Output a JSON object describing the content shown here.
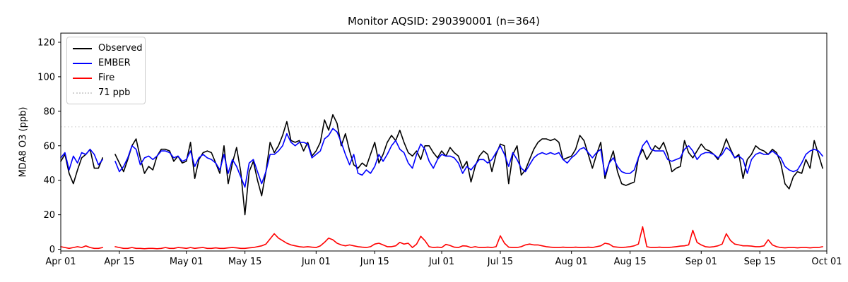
{
  "chart_data": {
    "type": "line",
    "title": "Monitor AQSID: 290390001 (n=364)",
    "ylabel": "MDA8 O3 (ppb)",
    "xlabel": "",
    "grid": false,
    "legend_position": "upper left",
    "ylim": [
      -1,
      125.3
    ],
    "yticks": [
      0,
      20,
      40,
      60,
      80,
      100,
      120
    ],
    "x": {
      "freq": "daily",
      "n_days": 183,
      "start_label": "Apr 01",
      "end_label": "Sep 30",
      "tick_days": [
        0,
        14,
        30,
        44,
        61,
        75,
        91,
        105,
        122,
        136,
        153,
        167,
        183
      ],
      "tick_labels": [
        "Apr 01",
        "Apr 15",
        "May 01",
        "May 15",
        "Jun 01",
        "Jun 15",
        "Jul 01",
        "Jul 15",
        "Aug 01",
        "Aug 15",
        "Sep 01",
        "Sep 15",
        "Oct 01"
      ]
    },
    "threshold": {
      "label": "71 ppb",
      "value": 71,
      "color": "#d3d3d3",
      "style": "dotted"
    },
    "series": [
      {
        "name": "Observed",
        "color": "#000000",
        "values": [
          51,
          55,
          44,
          38,
          46,
          53,
          55,
          58,
          47,
          47,
          53,
          null,
          null,
          55,
          50,
          45,
          52,
          60,
          64,
          53,
          44,
          48,
          46,
          54,
          58,
          58,
          57,
          51,
          54,
          50,
          51,
          62,
          41,
          52,
          56,
          57,
          56,
          50,
          44,
          60,
          38,
          50,
          59,
          45,
          20,
          45,
          51,
          40,
          31,
          45,
          62,
          56,
          60,
          66,
          74,
          63,
          62,
          63,
          57,
          62,
          54,
          57,
          62,
          75,
          69,
          78,
          73,
          60,
          67,
          57,
          49,
          47,
          50,
          48,
          55,
          62,
          50,
          55,
          62,
          66,
          63,
          69,
          62,
          56,
          54,
          57,
          52,
          60,
          60,
          56,
          53,
          57,
          54,
          59,
          56,
          54,
          47,
          51,
          39,
          48,
          54,
          57,
          55,
          45,
          55,
          61,
          60,
          38,
          55,
          60,
          43,
          46,
          52,
          58,
          62,
          64,
          64,
          63,
          64,
          62,
          52,
          53,
          54,
          58,
          66,
          63,
          55,
          47,
          55,
          62,
          41,
          50,
          57,
          45,
          38,
          37,
          38,
          39,
          53,
          58,
          52,
          56,
          60,
          58,
          62,
          55,
          45,
          47,
          48,
          63,
          56,
          53,
          57,
          61,
          58,
          57,
          55,
          52,
          57,
          64,
          58,
          53,
          55,
          41,
          52,
          55,
          60,
          58,
          57,
          55,
          58,
          56,
          50,
          38,
          35,
          42,
          45,
          44,
          52,
          47,
          63,
          55,
          47
        ]
      },
      {
        "name": "EMBER",
        "color": "#0000ff",
        "values": [
          53,
          56,
          46,
          54,
          50,
          56,
          55,
          58,
          55,
          49,
          52,
          null,
          null,
          51,
          45,
          48,
          53,
          60,
          58,
          49,
          53,
          54,
          52,
          54,
          57,
          57,
          56,
          53,
          54,
          51,
          52,
          57,
          48,
          53,
          55,
          53,
          52,
          50,
          46,
          55,
          44,
          52,
          48,
          42,
          36,
          50,
          52,
          45,
          38,
          45,
          55,
          55,
          57,
          60,
          67,
          62,
          60,
          62,
          62,
          61,
          53,
          55,
          57,
          64,
          66,
          70,
          68,
          62,
          55,
          49,
          55,
          44,
          43,
          46,
          44,
          48,
          55,
          51,
          55,
          60,
          63,
          58,
          56,
          50,
          47,
          55,
          61,
          58,
          51,
          47,
          52,
          55,
          54,
          54,
          53,
          50,
          44,
          48,
          46,
          49,
          52,
          52,
          50,
          52,
          56,
          60,
          55,
          48,
          56,
          52,
          47,
          45,
          49,
          53,
          55,
          56,
          55,
          56,
          55,
          56,
          52,
          50,
          53,
          55,
          58,
          59,
          56,
          53,
          56,
          58,
          43,
          50,
          53,
          48,
          45,
          44,
          44,
          46,
          53,
          60,
          63,
          58,
          57,
          57,
          57,
          52,
          51,
          52,
          53,
          58,
          60,
          57,
          52,
          55,
          56,
          56,
          55,
          53,
          55,
          59,
          57,
          53,
          54,
          52,
          44,
          52,
          55,
          56,
          55,
          55,
          57,
          55,
          53,
          48,
          46,
          45,
          46,
          50,
          55,
          57,
          58,
          57,
          54
        ]
      },
      {
        "name": "Fire",
        "color": "#ff0000",
        "values": [
          1.5,
          1,
          0.5,
          1,
          1.5,
          1,
          2,
          1,
          0.5,
          0.5,
          1,
          null,
          null,
          1.5,
          1,
          0.5,
          0.5,
          1,
          0.5,
          0.5,
          0.3,
          0.5,
          0.5,
          0.3,
          0.5,
          1,
          0.5,
          0.5,
          1,
          0.8,
          0.5,
          1,
          0.5,
          0.8,
          1,
          0.5,
          0.5,
          0.8,
          0.5,
          0.5,
          0.8,
          1,
          0.8,
          0.5,
          0.5,
          0.8,
          1,
          1.5,
          2,
          3,
          6,
          9,
          6.5,
          5,
          3.5,
          2.5,
          2,
          1.5,
          1.2,
          1.5,
          1.2,
          1,
          2,
          4,
          6.5,
          5.5,
          3.5,
          2.5,
          2,
          2.5,
          2,
          1.5,
          1.2,
          1,
          1.5,
          3,
          3.5,
          2.5,
          1.5,
          1.5,
          2,
          4,
          3,
          3.5,
          1,
          3,
          7.5,
          5,
          1.5,
          1,
          1.2,
          1,
          2.8,
          2.2,
          1.2,
          1,
          2,
          1.8,
          1,
          1.5,
          1,
          1,
          1.2,
          1,
          1.5,
          7.8,
          3.5,
          1.2,
          1,
          1,
          1.5,
          2.5,
          3,
          2.5,
          2.5,
          2,
          1.5,
          1.2,
          1,
          1,
          1.2,
          1,
          1,
          1.2,
          1,
          1,
          1.2,
          1,
          1.5,
          2,
          3.5,
          3,
          1.5,
          1.2,
          1,
          1.2,
          1.5,
          2,
          3,
          13,
          1.5,
          1,
          1,
          1.2,
          1,
          1,
          1.2,
          1.5,
          1.8,
          2,
          2.5,
          11,
          4,
          2.5,
          1.5,
          1.2,
          1.5,
          2,
          3,
          9,
          5,
          3,
          2.5,
          2,
          2,
          1.8,
          1.5,
          1.5,
          2,
          5.5,
          2.5,
          1.5,
          1,
          0.8,
          1,
          1,
          0.8,
          1,
          1,
          0.8,
          1,
          1,
          1.5
        ]
      }
    ]
  }
}
